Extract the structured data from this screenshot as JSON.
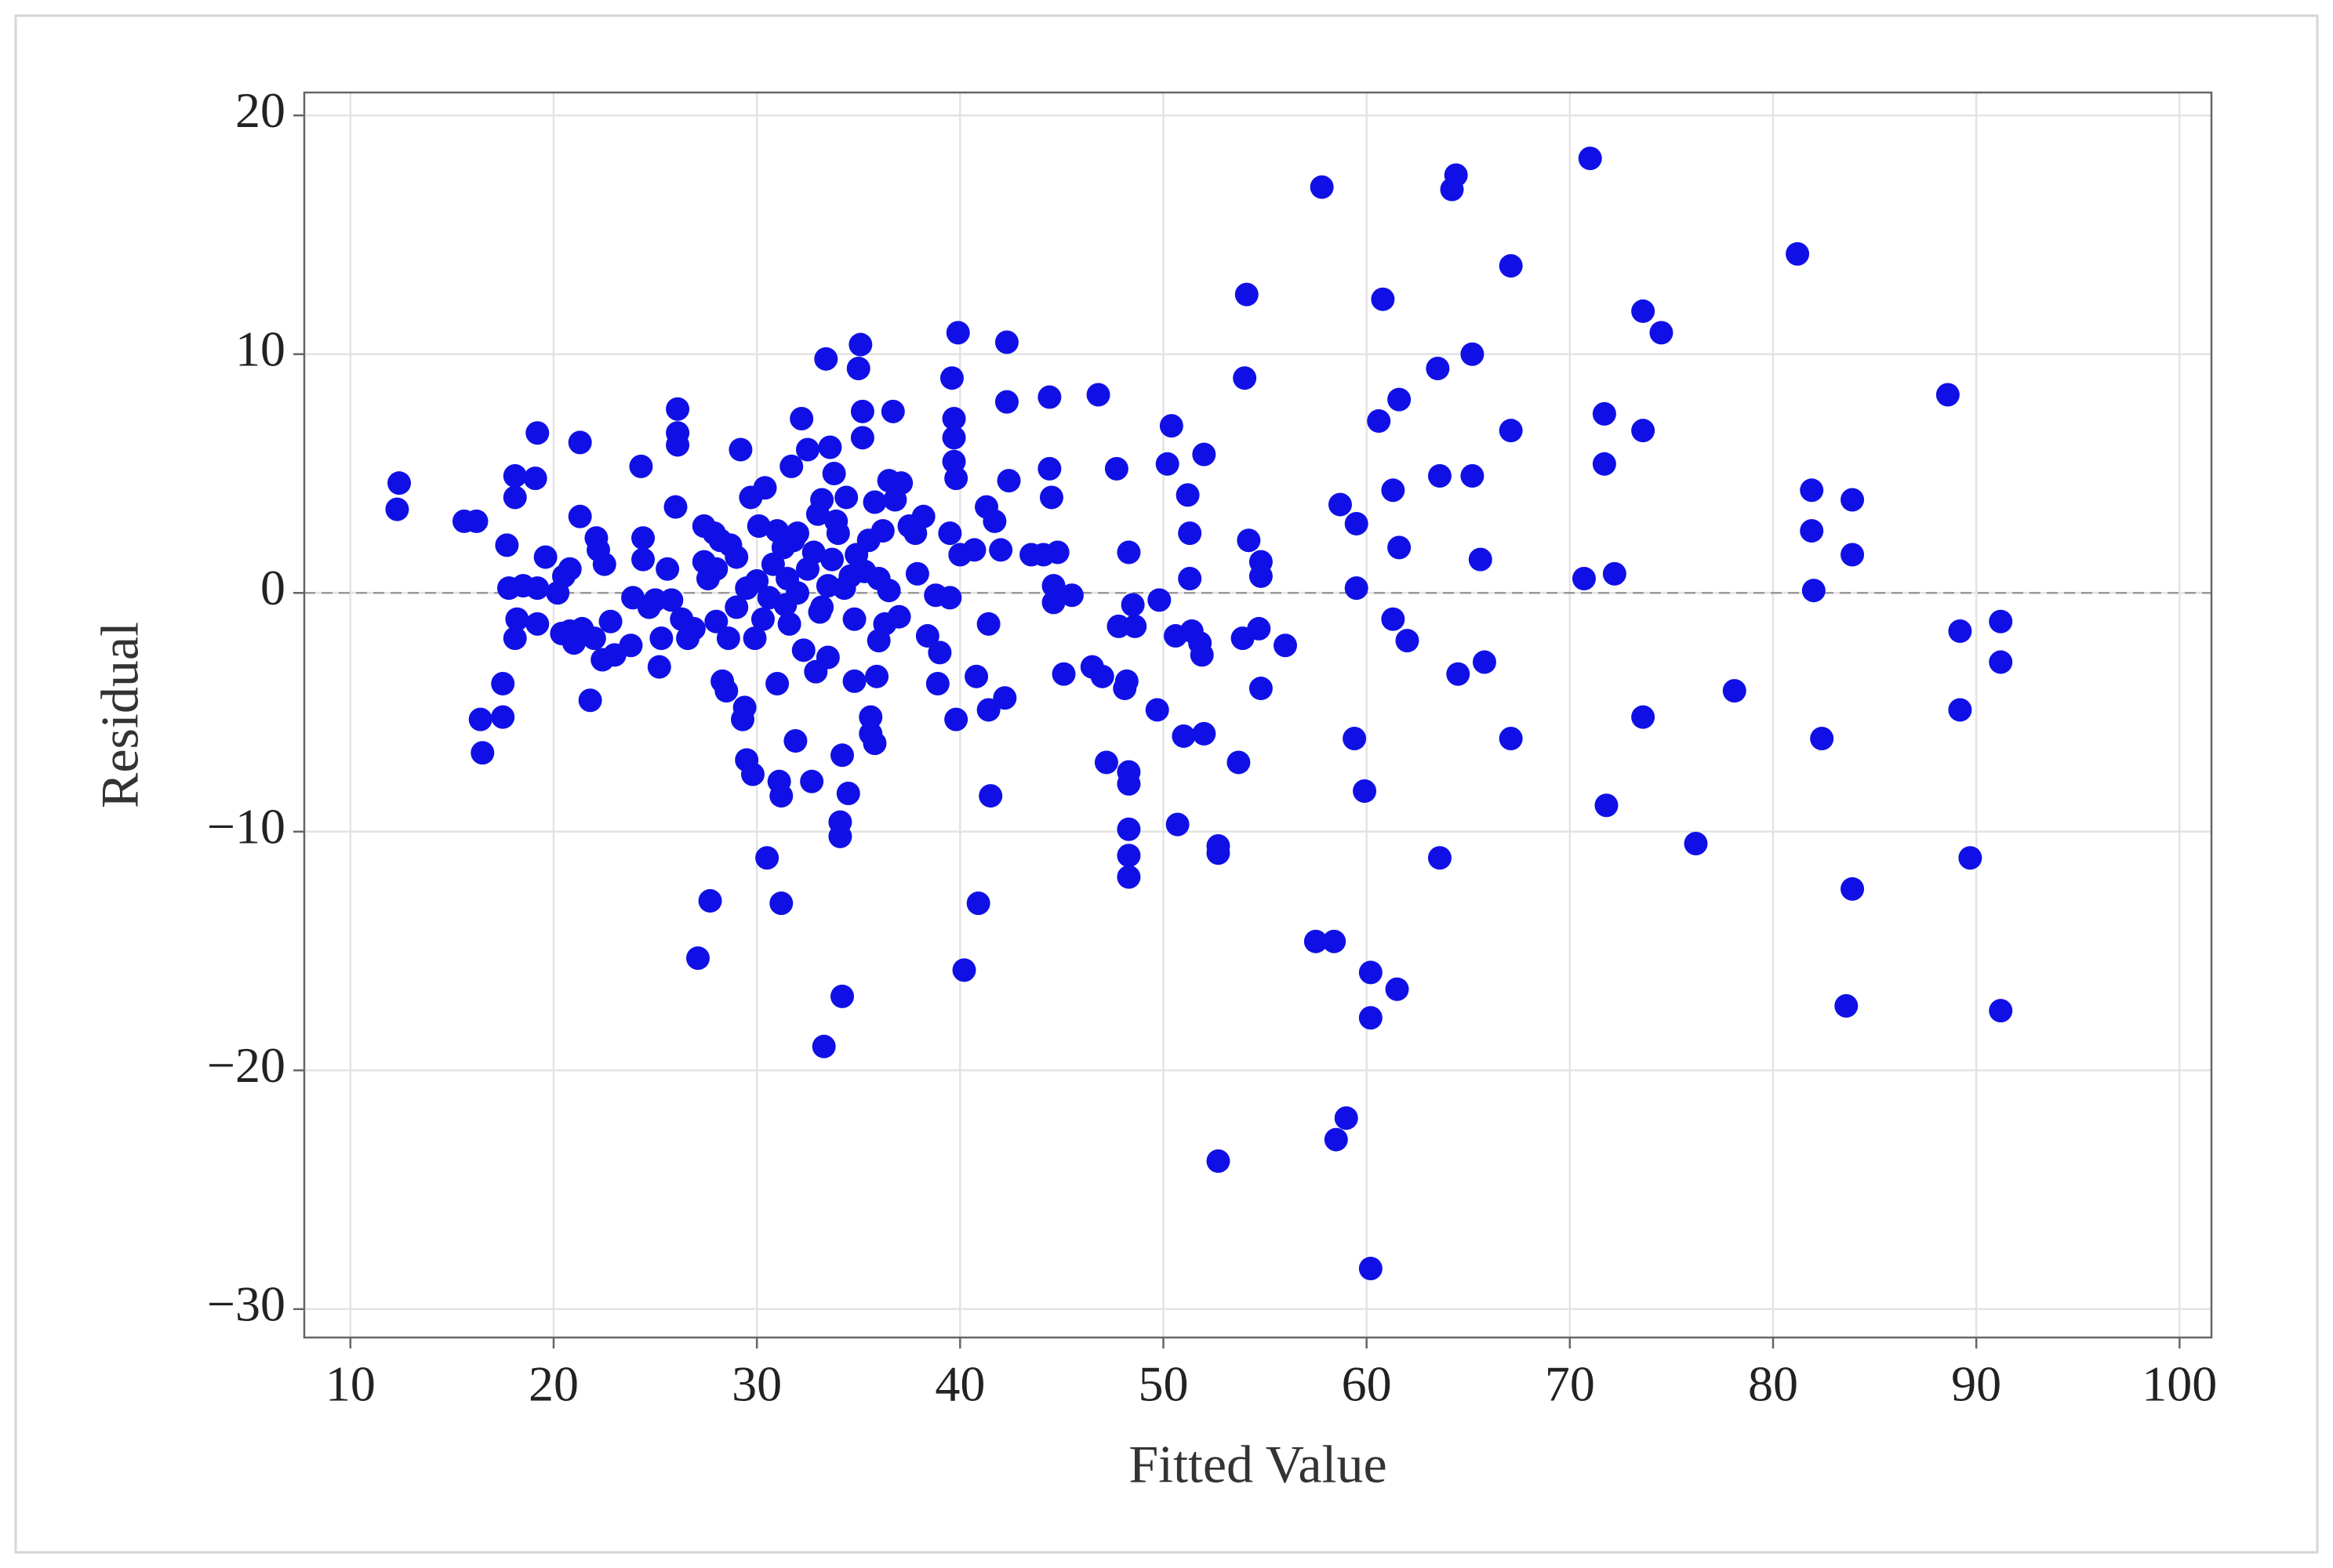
{
  "chart_data": {
    "type": "scatter",
    "x_label": "Fitted Value",
    "y_label": "Residual",
    "color": "#1010e6",
    "grid": true,
    "hline": 0,
    "xlim": [
      7.73,
      101.57
    ],
    "ylim": [
      -31.19,
      20.96
    ],
    "xticks": [
      10,
      20,
      30,
      40,
      50,
      60,
      70,
      80,
      90,
      100
    ],
    "yticks": [
      {
        "value": -30,
        "label": "−30"
      },
      {
        "value": -20,
        "label": "−20"
      },
      {
        "value": -10,
        "label": "−10"
      },
      0,
      10,
      20
    ],
    "x": [
      12.4,
      12.3,
      15.6,
      16.2,
      16.4,
      16.5,
      17.5,
      17.5,
      17.8,
      17.7,
      18.1,
      18.1,
      18.2,
      18.1,
      18.5,
      19.2,
      19.1,
      19.2,
      19.2,
      19.6,
      20.2,
      20.4,
      20.5,
      20.8,
      20.8,
      21.0,
      21.3,
      21.3,
      21.4,
      21.8,
      22.0,
      22.1,
      22.2,
      22.4,
      22.5,
      22.8,
      23.0,
      23.8,
      23.9,
      24.3,
      24.4,
      24.4,
      24.7,
      25.0,
      25.2,
      25.3,
      25.6,
      25.8,
      26.0,
      26.1,
      26.1,
      26.1,
      26.3,
      26.6,
      26.9,
      27.1,
      27.4,
      27.4,
      27.7,
      27.9,
      28.0,
      28.0,
      28.3,
      28.5,
      28.6,
      28.7,
      29.0,
      29.2,
      29.3,
      29.4,
      29.5,
      29.7,
      29.8,
      29.9,
      30.1,
      30.3,
      30.4,
      30.5,
      31.0,
      31.0,
      31.1,
      31.2,
      31.2,
      31.4,
      31.5,
      31.6,
      31.7,
      31.9,
      32.0,
      32.2,
      32.3,
      32.5,
      32.7,
      32.8,
      32.9,
      33.1,
      33.2,
      33.3,
      33.4,
      33.5,
      33.6,
      33.8,
      33.9,
      34.1,
      34.1,
      34.2,
      34.2,
      34.3,
      34.5,
      34.8,
      34.9,
      35.0,
      35.1,
      35.2,
      35.2,
      35.3,
      35.6,
      35.6,
      35.8,
      35.9,
      36.0,
      36.2,
      36.5,
      36.7,
      36.8,
      37.0,
      37.1,
      37.5,
      37.9,
      38.2,
      38.4,
      38.8,
      38.9,
      39.0,
      39.5,
      39.5,
      39.6,
      39.7,
      39.7,
      39.7,
      39.8,
      39.8,
      39.9,
      40.0,
      40.2,
      40.7,
      40.8,
      40.9,
      41.3,
      41.4,
      41.4,
      41.5,
      41.7,
      42.0,
      42.2,
      42.3,
      42.3,
      42.4,
      43.5,
      44.1,
      44.4,
      44.4,
      44.5,
      44.6,
      44.6,
      44.8,
      45.1,
      45.5,
      46.5,
      46.8,
      47.0,
      47.2,
      47.7,
      47.8,
      48.1,
      48.2,
      48.3,
      48.3,
      48.3,
      48.3,
      48.3,
      48.3,
      48.5,
      48.6,
      49.7,
      49.8,
      50.2,
      50.4,
      50.6,
      50.7,
      51.0,
      51.2,
      51.3,
      51.3,
      51.4,
      51.8,
      51.9,
      52.0,
      52.0,
      52.7,
      52.7,
      52.7,
      53.7,
      53.9,
      54.0,
      54.1,
      54.2,
      54.7,
      54.8,
      54.8,
      54.8,
      56.0,
      57.5,
      57.8,
      58.4,
      58.5,
      58.7,
      59.0,
      59.4,
      59.5,
      59.5,
      59.9,
      60.2,
      60.2,
      60.2,
      60.6,
      60.8,
      61.3,
      61.3,
      61.5,
      61.6,
      61.6,
      62.0,
      63.5,
      63.6,
      63.6,
      64.2,
      64.4,
      64.5,
      65.2,
      65.2,
      65.6,
      65.8,
      67.1,
      67.1,
      67.1,
      70.7,
      71.0,
      71.7,
      71.7,
      71.8,
      72.2,
      73.6,
      73.6,
      73.6,
      74.5,
      76.2,
      78.1,
      81.2,
      81.9,
      81.9,
      82.0,
      82.4,
      83.6,
      83.9,
      83.9,
      83.9,
      88.6,
      89.2,
      89.2,
      89.7,
      91.2,
      91.2,
      91.2,
      30.0,
      30.8,
      31.8,
      32.5,
      33.0,
      33.5,
      34.0,
      34.6,
      35.5,
      36.0,
      36.3,
      33.7,
      34.4,
      35.8,
      32.0,
      29.0,
      28.2,
      27.6,
      30.6,
      31.3,
      34.8,
      36.5,
      37.8,
      29.5,
      33.2
    ],
    "values": [
      4.6,
      3.5,
      3.0,
      3.0,
      -5.3,
      -6.7,
      -3.8,
      -5.2,
      0.2,
      2.0,
      4.9,
      4.0,
      -1.1,
      -1.9,
      0.3,
      6.7,
      4.8,
      0.2,
      -1.3,
      1.5,
      0.0,
      -1.7,
      0.7,
      1.0,
      -1.6,
      -2.1,
      6.3,
      3.2,
      -1.5,
      -4.5,
      -1.9,
      2.3,
      1.8,
      -2.8,
      1.2,
      -1.2,
      -2.6,
      -2.2,
      -0.2,
      5.3,
      2.3,
      1.4,
      -0.6,
      -0.3,
      -3.1,
      -1.9,
      1.0,
      -0.3,
      3.6,
      7.7,
      6.7,
      6.2,
      -1.1,
      -1.9,
      -1.5,
      -15.3,
      2.8,
      1.3,
      -12.9,
      2.5,
      1.0,
      -1.2,
      -3.7,
      -4.1,
      -1.9,
      2.0,
      -0.6,
      6.0,
      -5.3,
      -4.8,
      -7.0,
      4.0,
      -7.6,
      -1.9,
      2.8,
      -1.1,
      4.4,
      -11.1,
      2.6,
      -3.8,
      -7.9,
      -8.5,
      -13.0,
      -0.5,
      0.6,
      -1.3,
      5.3,
      -6.2,
      2.5,
      7.3,
      -2.4,
      6.0,
      -7.9,
      1.7,
      -3.3,
      -0.8,
      3.9,
      -19.0,
      9.8,
      -2.7,
      6.1,
      5.0,
      3.0,
      -9.6,
      -10.2,
      -16.9,
      -6.8,
      0.2,
      -8.4,
      -3.7,
      1.6,
      9.4,
      10.4,
      7.6,
      6.5,
      0.9,
      -5.2,
      -5.9,
      -6.3,
      -3.5,
      -2.0,
      2.6,
      4.7,
      7.6,
      3.9,
      -1.0,
      4.6,
      2.8,
      0.8,
      3.2,
      -1.8,
      -0.1,
      -3.8,
      -2.5,
      2.5,
      -0.2,
      9.0,
      7.3,
      6.5,
      5.5,
      -5.3,
      4.8,
      10.9,
      1.6,
      -15.8,
      1.8,
      -3.5,
      -13.0,
      3.6,
      -1.3,
      -4.9,
      -8.5,
      3.0,
      1.8,
      -4.4,
      8.0,
      10.5,
      4.7,
      1.6,
      1.6,
      8.2,
      5.2,
      4.0,
      0.3,
      -0.4,
      1.7,
      -3.4,
      -0.1,
      -3.1,
      8.3,
      -3.5,
      -7.1,
      5.2,
      -1.4,
      -4.0,
      -3.7,
      -7.5,
      -8.0,
      -9.9,
      -11.0,
      -11.9,
      1.7,
      -0.5,
      -1.4,
      -4.9,
      -0.3,
      5.4,
      7.0,
      -1.8,
      -9.7,
      -6.0,
      4.1,
      2.5,
      0.6,
      -1.6,
      -2.1,
      -2.6,
      5.8,
      -5.9,
      -10.6,
      -10.9,
      -23.8,
      -7.1,
      -1.9,
      9.0,
      12.5,
      2.2,
      -1.5,
      1.3,
      0.7,
      -4.0,
      -2.2,
      -14.6,
      17.0,
      -14.6,
      -22.9,
      3.7,
      -22.0,
      -6.1,
      0.2,
      2.9,
      -8.3,
      -15.9,
      -17.8,
      -28.3,
      7.2,
      12.3,
      4.3,
      -1.1,
      -16.6,
      1.9,
      8.1,
      -2.0,
      9.4,
      4.9,
      -11.1,
      16.9,
      17.5,
      -3.4,
      10.0,
      4.9,
      1.4,
      -2.9,
      13.7,
      6.8,
      -6.1,
      0.6,
      18.2,
      7.5,
      5.4,
      -8.9,
      0.8,
      11.8,
      6.8,
      -5.2,
      10.9,
      -10.5,
      -4.1,
      14.2,
      4.3,
      2.6,
      0.1,
      -6.1,
      -17.3,
      3.9,
      1.6,
      -12.4,
      8.3,
      -1.6,
      -4.9,
      -11.1,
      -1.2,
      -2.9,
      -17.5,
      0.5,
      1.2,
      2.2,
      1.0,
      3.3,
      0.3,
      2.5,
      0.7,
      2.2,
      0.6,
      -1.3,
      1.4,
      4.0,
      3.8,
      0.0,
      1.5,
      2.2,
      0.6,
      -0.2,
      1.9,
      -1.1,
      0.1,
      2.5,
      0.2,
      -0.6
    ]
  }
}
